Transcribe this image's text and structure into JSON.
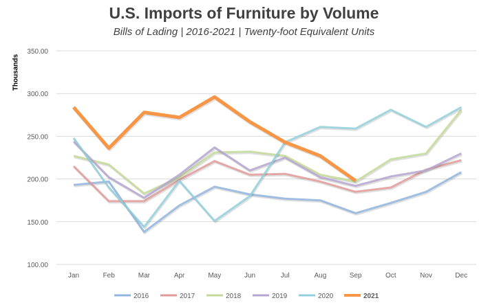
{
  "chart_data": {
    "type": "line",
    "title": "U.S. Imports of Furniture by Volume",
    "subtitle": "Bills of Lading | 2016-2021 | Twenty-foot Equivalent Units",
    "ylabel": "Thousands",
    "xlabel": "",
    "ylim": [
      100,
      350
    ],
    "yticks": [
      "100.00",
      "150.00",
      "200.00",
      "250.00",
      "300.00",
      "350.00"
    ],
    "grid": true,
    "legend_placement": "bottom",
    "categories": [
      "Jan",
      "Feb",
      "Mar",
      "Apr",
      "May",
      "Jun",
      "Jul",
      "Aug",
      "Sep",
      "Oct",
      "Nov",
      "Dec"
    ],
    "series": [
      {
        "name": "2016",
        "color": "#8fb4dd",
        "values": [
          193,
          197,
          138,
          169,
          191,
          182,
          177,
          175,
          160,
          172,
          185,
          208
        ]
      },
      {
        "name": "2017",
        "color": "#e09a98",
        "values": [
          215,
          174,
          174,
          199,
          221,
          205,
          206,
          197,
          185,
          190,
          211,
          222
        ]
      },
      {
        "name": "2018",
        "color": "#c3d99a",
        "values": [
          227,
          217,
          183,
          202,
          231,
          232,
          227,
          205,
          197,
          223,
          230,
          281
        ]
      },
      {
        "name": "2019",
        "color": "#b4a4cf",
        "values": [
          244,
          202,
          178,
          205,
          237,
          210,
          225,
          202,
          192,
          203,
          210,
          230
        ]
      },
      {
        "name": "2020",
        "color": "#92cfdc",
        "values": [
          248,
          190,
          144,
          198,
          151,
          180,
          243,
          261,
          259,
          281,
          261,
          284
        ]
      },
      {
        "name": "2021",
        "color": "#f79646",
        "values": [
          284,
          236,
          278,
          272,
          296,
          267,
          243,
          227,
          198,
          null,
          null,
          null
        ]
      }
    ]
  }
}
